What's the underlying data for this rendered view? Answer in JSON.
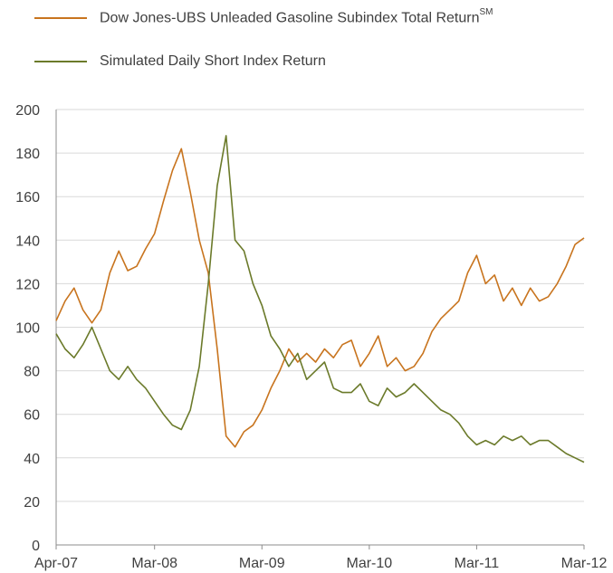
{
  "legend": {
    "item0_label": "Dow Jones-UBS Unleaded Gasoline Subindex Total Return",
    "item0_sup": "SM",
    "item1_label": "Simulated Daily Short Index Return"
  },
  "colors": {
    "gasoline": "#c8741e",
    "short": "#6b7a2a",
    "grid": "#d9d9d9",
    "axis": "#8c8c8c"
  },
  "chart_data": {
    "type": "line",
    "grid": true,
    "legend_placement": "top-left",
    "ylim": [
      0,
      200
    ],
    "y_ticks": [
      "0",
      "20",
      "40",
      "60",
      "80",
      "100",
      "120",
      "140",
      "160",
      "180",
      "200"
    ],
    "x_ticks": [
      "Apr-07",
      "Mar-08",
      "Mar-09",
      "Mar-10",
      "Mar-11",
      "Mar-12"
    ],
    "x_tick_dates": [
      "2007-04",
      "2008-03",
      "2009-03",
      "2010-03",
      "2011-03",
      "2012-03"
    ],
    "xlim": [
      "2007-04",
      "2012-03"
    ],
    "series": [
      {
        "name": "Dow Jones-UBS Unleaded Gasoline Subindex Total Return",
        "color_key": "gasoline",
        "x": [
          "2007-04",
          "2007-05",
          "2007-06",
          "2007-07",
          "2007-08",
          "2007-09",
          "2007-10",
          "2007-11",
          "2007-12",
          "2008-01",
          "2008-02",
          "2008-03",
          "2008-04",
          "2008-05",
          "2008-06",
          "2008-07",
          "2008-08",
          "2008-09",
          "2008-10",
          "2008-11",
          "2008-12",
          "2009-01",
          "2009-02",
          "2009-03",
          "2009-04",
          "2009-05",
          "2009-06",
          "2009-07",
          "2009-08",
          "2009-09",
          "2009-10",
          "2009-11",
          "2009-12",
          "2010-01",
          "2010-02",
          "2010-03",
          "2010-04",
          "2010-05",
          "2010-06",
          "2010-07",
          "2010-08",
          "2010-09",
          "2010-10",
          "2010-11",
          "2010-12",
          "2011-01",
          "2011-02",
          "2011-03",
          "2011-04",
          "2011-05",
          "2011-06",
          "2011-07",
          "2011-08",
          "2011-09",
          "2011-10",
          "2011-11",
          "2011-12",
          "2012-01",
          "2012-02",
          "2012-03"
        ],
        "values": [
          103,
          112,
          118,
          108,
          102,
          108,
          125,
          135,
          126,
          128,
          136,
          143,
          158,
          172,
          182,
          162,
          140,
          125,
          90,
          50,
          45,
          52,
          55,
          62,
          72,
          80,
          90,
          84,
          88,
          84,
          90,
          86,
          92,
          94,
          82,
          88,
          96,
          82,
          86,
          80,
          82,
          88,
          98,
          104,
          108,
          112,
          125,
          133,
          120,
          124,
          112,
          118,
          110,
          118,
          112,
          114,
          120,
          128,
          138,
          141
        ]
      },
      {
        "name": "Simulated Daily Short Index Return",
        "color_key": "short",
        "x": [
          "2007-04",
          "2007-05",
          "2007-06",
          "2007-07",
          "2007-08",
          "2007-09",
          "2007-10",
          "2007-11",
          "2007-12",
          "2008-01",
          "2008-02",
          "2008-03",
          "2008-04",
          "2008-05",
          "2008-06",
          "2008-07",
          "2008-08",
          "2008-09",
          "2008-10",
          "2008-11",
          "2008-12",
          "2009-01",
          "2009-02",
          "2009-03",
          "2009-04",
          "2009-05",
          "2009-06",
          "2009-07",
          "2009-08",
          "2009-09",
          "2009-10",
          "2009-11",
          "2009-12",
          "2010-01",
          "2010-02",
          "2010-03",
          "2010-04",
          "2010-05",
          "2010-06",
          "2010-07",
          "2010-08",
          "2010-09",
          "2010-10",
          "2010-11",
          "2010-12",
          "2011-01",
          "2011-02",
          "2011-03",
          "2011-04",
          "2011-05",
          "2011-06",
          "2011-07",
          "2011-08",
          "2011-09",
          "2011-10",
          "2011-11",
          "2011-12",
          "2012-01",
          "2012-02",
          "2012-03"
        ],
        "values": [
          97,
          90,
          86,
          92,
          100,
          90,
          80,
          76,
          82,
          76,
          72,
          66,
          60,
          55,
          53,
          62,
          82,
          120,
          165,
          188,
          140,
          135,
          120,
          110,
          96,
          90,
          82,
          88,
          76,
          80,
          84,
          72,
          70,
          70,
          74,
          66,
          64,
          72,
          68,
          70,
          74,
          70,
          66,
          62,
          60,
          56,
          50,
          46,
          48,
          46,
          50,
          48,
          50,
          46,
          48,
          48,
          45,
          42,
          40,
          38
        ]
      }
    ]
  }
}
